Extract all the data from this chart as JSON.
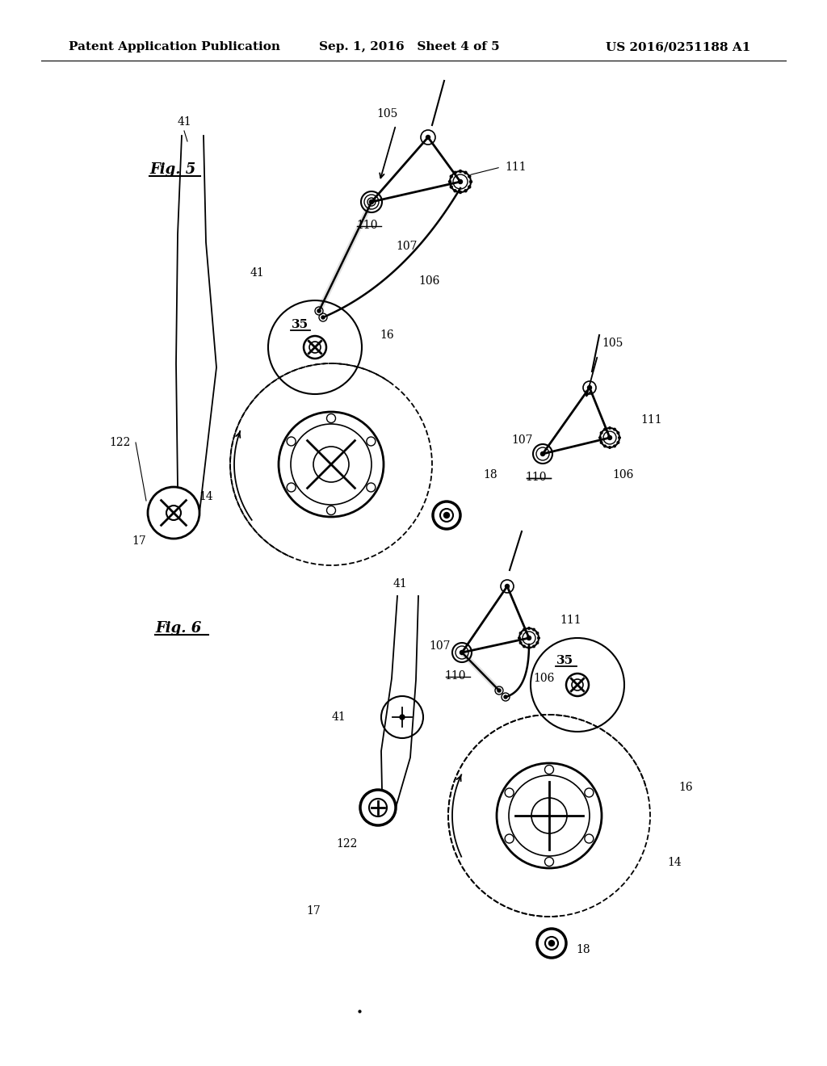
{
  "background_color": "#ffffff",
  "header_left": "Patent Application Publication",
  "header_center": "Sep. 1, 2016   Sheet 4 of 5",
  "header_right": "US 2016/0251188 A1",
  "fig5_label": "Fig. 5",
  "fig6_label": "Fig. 6",
  "header_fontsize": 11,
  "label_fontsize": 10,
  "fig_label_fontsize": 13
}
